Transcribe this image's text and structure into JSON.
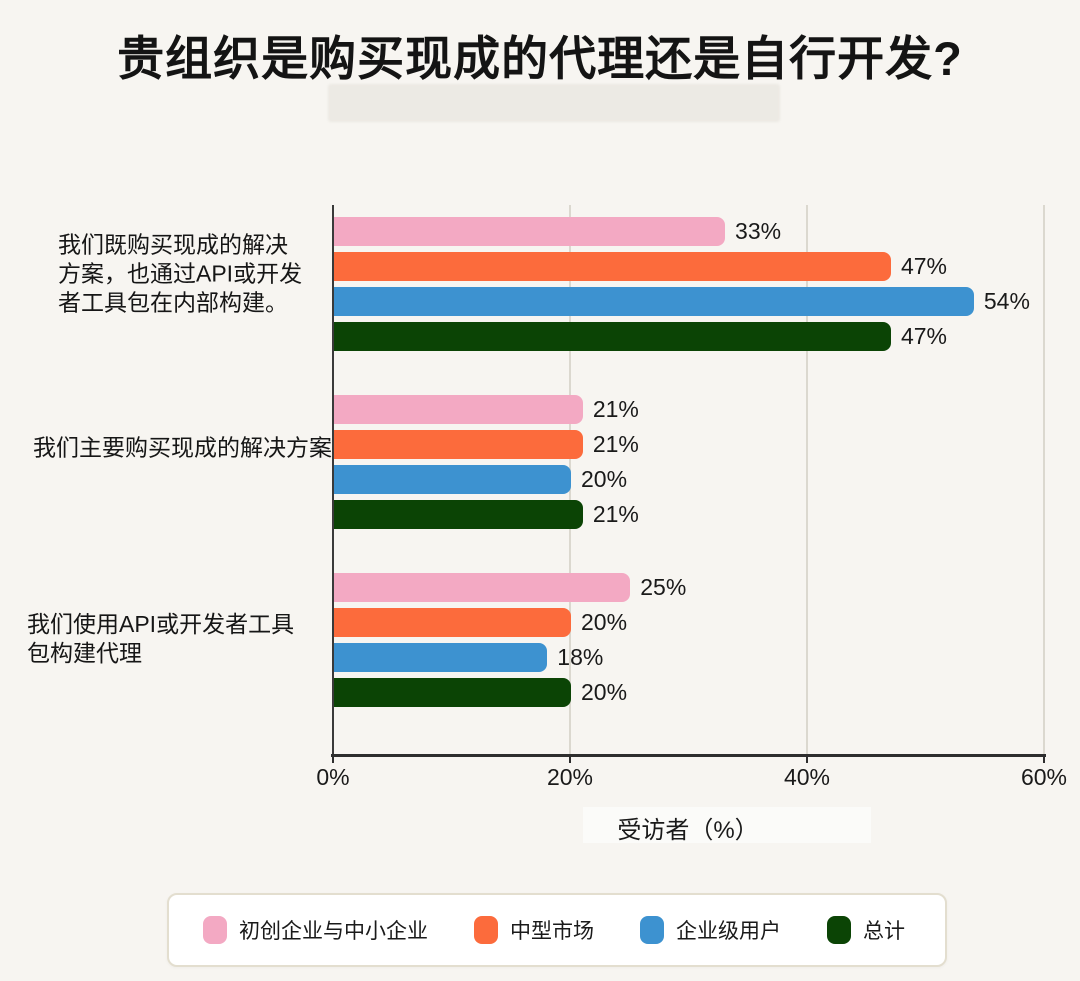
{
  "page": {
    "background": "#F7F5F1"
  },
  "colors": {
    "background": "#F7F5F1",
    "text": "#151515",
    "axis": "#2E2E2E",
    "gridline": "#DBD8CF",
    "legend_card_bg": "#FFFFFF",
    "legend_card_border": "#E3DECF"
  },
  "chart_data": {
    "type": "bar",
    "orientation": "horizontal",
    "title": "贵组织是购买现成的代理还是自行开发?",
    "xlabel": "受访者（%）",
    "xlim": [
      0,
      60
    ],
    "x_tick_labels": [
      "0%",
      "20%",
      "40%",
      "60%"
    ],
    "x_tick_values": [
      0,
      20,
      40,
      60
    ],
    "grid": "vertical",
    "legend_position": "bottom",
    "value_label_format": "{value}%",
    "categories": [
      {
        "label": "我们既购买现成的解决方案，也通过API或开发者工具包在内部构建。",
        "lines": [
          "我们既购买现成的解决",
          "方案，也通过API或开发",
          "者工具包在内部构建。"
        ]
      },
      {
        "label": "我们主要购买现成的解决方案",
        "lines": [
          "我们主要购买现成的解决方案"
        ]
      },
      {
        "label": "我们使用API或开发者工具包构建代理",
        "lines": [
          "我们使用API或开发者工具",
          "包构建代理"
        ]
      }
    ],
    "series": [
      {
        "name": "初创企业与中小企业",
        "color": "#F3A9C3",
        "values": [
          33,
          21,
          25
        ]
      },
      {
        "name": "中型市场",
        "color": "#FC6B3C",
        "values": [
          47,
          21,
          20
        ]
      },
      {
        "name": "企业级用户",
        "color": "#3D92D0",
        "values": [
          54,
          20,
          18
        ]
      },
      {
        "name": "总计",
        "color": "#0B4405",
        "values": [
          47,
          21,
          20
        ]
      }
    ]
  }
}
